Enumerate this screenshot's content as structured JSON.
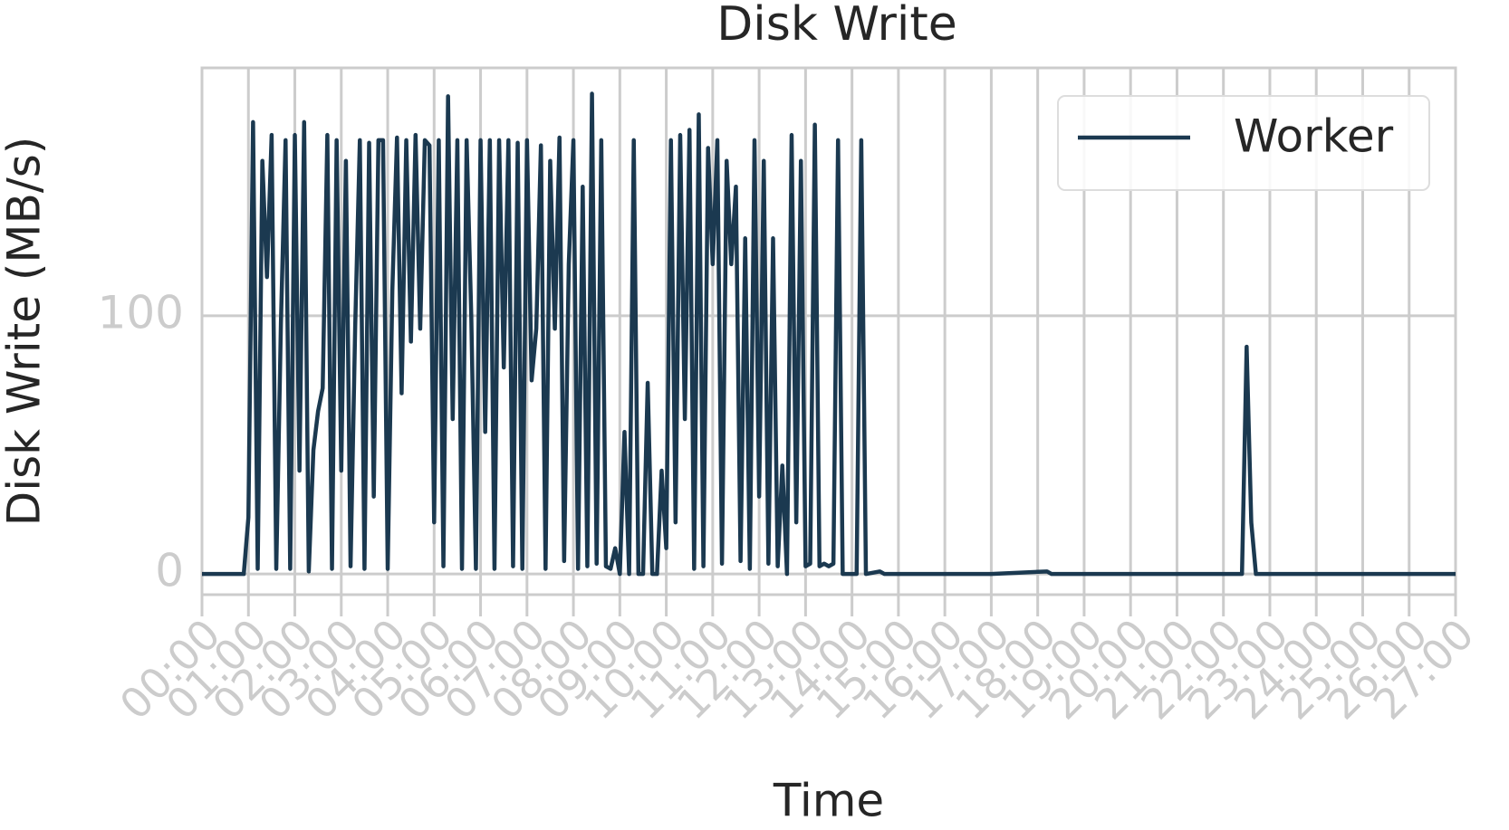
{
  "chart_data": {
    "type": "line",
    "title": "Disk Write",
    "xlabel": "Time",
    "ylabel": "Disk Write (MB/s)",
    "x": [
      0,
      0.5,
      0.9,
      1.0,
      1.1,
      1.2,
      1.3,
      1.4,
      1.5,
      1.6,
      1.7,
      1.8,
      1.9,
      2.0,
      2.1,
      2.2,
      2.3,
      2.4,
      2.5,
      2.6,
      2.7,
      2.8,
      2.9,
      3.0,
      3.1,
      3.2,
      3.3,
      3.4,
      3.5,
      3.6,
      3.7,
      3.8,
      3.9,
      4.0,
      4.1,
      4.2,
      4.3,
      4.4,
      4.5,
      4.6,
      4.7,
      4.8,
      4.9,
      5.0,
      5.1,
      5.2,
      5.3,
      5.4,
      5.5,
      5.6,
      5.7,
      5.8,
      5.9,
      6.0,
      6.1,
      6.2,
      6.3,
      6.4,
      6.5,
      6.6,
      6.7,
      6.8,
      6.9,
      7.0,
      7.1,
      7.2,
      7.3,
      7.4,
      7.5,
      7.6,
      7.7,
      7.8,
      7.9,
      8.0,
      8.1,
      8.2,
      8.3,
      8.4,
      8.5,
      8.6,
      8.7,
      8.8,
      8.9,
      9.0,
      9.1,
      9.2,
      9.3,
      9.4,
      9.5,
      9.6,
      9.7,
      9.8,
      9.9,
      10.0,
      10.1,
      10.2,
      10.3,
      10.4,
      10.5,
      10.6,
      10.7,
      10.8,
      10.9,
      11.0,
      11.1,
      11.2,
      11.3,
      11.4,
      11.5,
      11.6,
      11.7,
      11.8,
      11.9,
      12.0,
      12.1,
      12.2,
      12.3,
      12.4,
      12.5,
      12.6,
      12.7,
      12.8,
      12.9,
      13.0,
      13.1,
      13.2,
      13.3,
      13.4,
      13.5,
      13.6,
      13.7,
      13.8,
      13.9,
      14.0,
      14.1,
      14.2,
      14.3,
      14.6,
      14.7,
      15,
      16,
      17,
      18.2,
      18.3,
      19,
      20,
      21,
      22,
      22.4,
      22.5,
      22.6,
      22.7,
      23,
      24,
      25,
      26,
      27
    ],
    "series": [
      {
        "name": "Worker",
        "color": "#1b3950",
        "values": [
          0,
          0,
          0,
          22,
          175,
          2,
          160,
          115,
          170,
          2,
          97,
          168,
          2,
          170,
          40,
          175,
          1,
          48,
          63,
          72,
          170,
          2,
          168,
          40,
          160,
          3,
          96,
          168,
          2,
          167,
          30,
          168,
          168,
          2,
          110,
          169,
          70,
          168,
          90,
          170,
          95,
          168,
          166,
          20,
          168,
          3,
          185,
          60,
          168,
          2,
          168,
          100,
          2,
          168,
          55,
          168,
          2,
          168,
          80,
          168,
          3,
          167,
          2,
          168,
          75,
          95,
          166,
          2,
          160,
          95,
          169,
          5,
          120,
          168,
          2,
          150,
          3,
          186,
          4,
          168,
          3,
          2,
          10,
          0,
          55,
          0,
          168,
          0,
          0,
          74,
          0,
          0,
          40,
          10,
          168,
          20,
          170,
          60,
          172,
          2,
          178,
          3,
          165,
          120,
          168,
          4,
          160,
          120,
          150,
          5,
          130,
          2,
          168,
          30,
          160,
          4,
          130,
          3,
          42,
          0,
          170,
          20,
          160,
          3,
          4,
          174,
          3,
          4,
          3,
          4,
          168,
          0,
          0,
          0,
          0,
          168,
          0,
          1,
          0,
          0,
          0,
          0,
          1,
          0,
          0,
          0,
          0,
          0,
          0,
          88,
          20,
          0,
          0,
          0,
          0,
          0,
          0
        ]
      }
    ],
    "xlim": [
      0,
      27
    ],
    "ylim": [
      -8,
      196
    ],
    "xticks": [
      {
        "value": 0,
        "label": "00:00"
      },
      {
        "value": 1,
        "label": "01:00"
      },
      {
        "value": 2,
        "label": "02:00"
      },
      {
        "value": 3,
        "label": "03:00"
      },
      {
        "value": 4,
        "label": "04:00"
      },
      {
        "value": 5,
        "label": "05:00"
      },
      {
        "value": 6,
        "label": "06:00"
      },
      {
        "value": 7,
        "label": "07:00"
      },
      {
        "value": 8,
        "label": "08:00"
      },
      {
        "value": 9,
        "label": "09:00"
      },
      {
        "value": 10,
        "label": "10:00"
      },
      {
        "value": 11,
        "label": "11:00"
      },
      {
        "value": 12,
        "label": "12:00"
      },
      {
        "value": 13,
        "label": "13:00"
      },
      {
        "value": 14,
        "label": "14:00"
      },
      {
        "value": 15,
        "label": "15:00"
      },
      {
        "value": 16,
        "label": "16:00"
      },
      {
        "value": 17,
        "label": "17:00"
      },
      {
        "value": 18,
        "label": "18:00"
      },
      {
        "value": 19,
        "label": "19:00"
      },
      {
        "value": 20,
        "label": "20:00"
      },
      {
        "value": 21,
        "label": "21:00"
      },
      {
        "value": 22,
        "label": "22:00"
      },
      {
        "value": 23,
        "label": "23:00"
      },
      {
        "value": 24,
        "label": "24:00"
      },
      {
        "value": 25,
        "label": "25:00"
      },
      {
        "value": 26,
        "label": "26:00"
      },
      {
        "value": 27,
        "label": "27:00"
      }
    ],
    "yticks": [
      0,
      100
    ],
    "grid": true,
    "legend": "upper right"
  }
}
